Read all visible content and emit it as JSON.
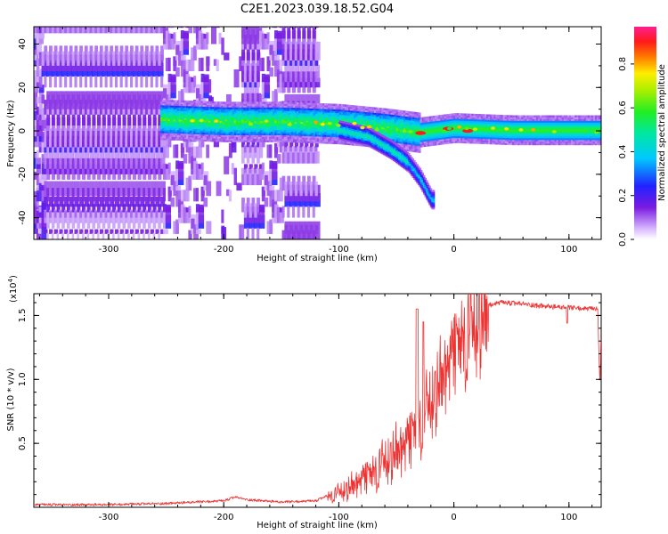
{
  "title": "C2E1.2023.039.18.52.G04",
  "colors": {
    "snr_line": "#ee3333",
    "spectrogram_low": "#e6ccff",
    "spectrogram_mid": "#7a1be0",
    "spectrogram_high": "#ff1f6f",
    "frame": "#000000"
  },
  "chart_data": [
    {
      "type": "heatmap",
      "name": "spectrogram",
      "xlabel": "Height of straight line (km)",
      "ylabel": "Frequency (Hz)",
      "xlim": [
        -365,
        128
      ],
      "ylim": [
        -50,
        48
      ],
      "xticks": [
        -300,
        -200,
        -100,
        0,
        100
      ],
      "xtick_labels": [
        "-300",
        "-200",
        "-100",
        "0",
        "100"
      ],
      "yticks": [
        -40,
        -20,
        0,
        20,
        40
      ],
      "ytick_labels": [
        "-40",
        "-20",
        "0",
        "20",
        "40"
      ],
      "colorbar": {
        "label": "Normalized spectral amplitude",
        "range": [
          0.0,
          0.97
        ],
        "ticks": [
          0.0,
          0.2,
          0.4,
          0.6,
          0.8
        ],
        "tick_labels": [
          "0.0",
          "0.2",
          "0.4",
          "0.6",
          "0.8"
        ],
        "colormap": "rainbow (white-violet-blue-cyan-green-yellow-red-magenta)"
      },
      "features": {
        "main_band": [
          [
            -255,
            5
          ],
          [
            -200,
            4
          ],
          [
            -150,
            4
          ],
          [
            -100,
            3
          ],
          [
            -60,
            1
          ],
          [
            -30,
            -1
          ],
          [
            0,
            1
          ],
          [
            50,
            0
          ],
          [
            128,
            0
          ]
        ],
        "drifting_branch": [
          [
            -100,
            0
          ],
          [
            -75,
            -3
          ],
          [
            -55,
            -9
          ],
          [
            -40,
            -15
          ],
          [
            -30,
            -22
          ],
          [
            -20,
            -32
          ]
        ],
        "noise_region_x": [
          -365,
          -120
        ],
        "peak_points": [
          [
            -29,
            -1
          ],
          [
            -5,
            1
          ],
          [
            12,
            0
          ]
        ]
      }
    },
    {
      "type": "line",
      "name": "snr",
      "xlabel": "Height of straight line (km)",
      "ylabel": "SNR (10 * v/v)",
      "multiplier_label": "(x10",
      "multiplier_exp": "4",
      "multiplier_close": ")",
      "xlim": [
        -365,
        128
      ],
      "ylim": [
        0,
        1.67
      ],
      "xticks": [
        -300,
        -200,
        -100,
        0,
        100
      ],
      "xtick_labels": [
        "-300",
        "-200",
        "-100",
        "0",
        "100"
      ],
      "yticks": [
        0.5,
        1.0,
        1.5
      ],
      "ytick_labels": [
        "0.5",
        "1.0",
        "1.5"
      ],
      "envelope": [
        [
          -365,
          0.02
        ],
        [
          -300,
          0.02
        ],
        [
          -250,
          0.03
        ],
        [
          -200,
          0.05
        ],
        [
          -190,
          0.08
        ],
        [
          -180,
          0.06
        ],
        [
          -150,
          0.04
        ],
        [
          -120,
          0.05
        ],
        [
          -110,
          0.09
        ],
        [
          -100,
          0.13
        ],
        [
          -90,
          0.17
        ],
        [
          -80,
          0.24
        ],
        [
          -70,
          0.31
        ],
        [
          -60,
          0.39
        ],
        [
          -50,
          0.46
        ],
        [
          -40,
          0.55
        ],
        [
          -32,
          0.68
        ],
        [
          -25,
          0.8
        ],
        [
          -20,
          0.88
        ],
        [
          -15,
          0.96
        ],
        [
          -10,
          1.06
        ],
        [
          -5,
          1.17
        ],
        [
          0,
          1.28
        ],
        [
          5,
          1.37
        ],
        [
          10,
          1.42
        ],
        [
          15,
          1.47
        ],
        [
          20,
          1.51
        ],
        [
          25,
          1.55
        ],
        [
          30,
          1.58
        ],
        [
          40,
          1.6
        ],
        [
          60,
          1.59
        ],
        [
          80,
          1.57
        ],
        [
          100,
          1.56
        ],
        [
          120,
          1.55
        ],
        [
          125,
          1.55
        ],
        [
          126,
          1.2
        ],
        [
          127,
          0.95
        ],
        [
          128,
          1.4
        ]
      ]
    }
  ]
}
